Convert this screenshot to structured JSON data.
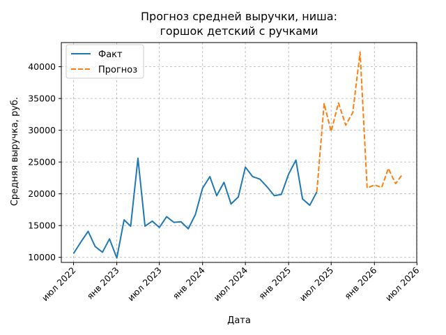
{
  "chart_data": {
    "type": "line",
    "title_lines": [
      "Прогноз средней выручки, ниша:",
      "горшок детский с ручками"
    ],
    "xlabel": "Дата",
    "ylabel": "Средняя выручка, руб.",
    "grid": true,
    "legend_position": "top-left",
    "xlim": [
      "2022-05-10",
      "2026-06-30"
    ],
    "ylim": [
      9200,
      43800
    ],
    "x_ticks": [
      {
        "date": "2022-07-01",
        "label": "июл 2022"
      },
      {
        "date": "2023-01-01",
        "label": "янв 2023"
      },
      {
        "date": "2023-07-01",
        "label": "июл 2023"
      },
      {
        "date": "2024-01-01",
        "label": "янв 2024"
      },
      {
        "date": "2024-07-01",
        "label": "июл 2024"
      },
      {
        "date": "2025-01-01",
        "label": "янв 2025"
      },
      {
        "date": "2025-07-01",
        "label": "июл 2025"
      },
      {
        "date": "2026-01-01",
        "label": "янв 2026"
      },
      {
        "date": "2026-07-01",
        "label": "июл 2026"
      }
    ],
    "y_ticks": [
      10000,
      15000,
      20000,
      25000,
      30000,
      35000,
      40000
    ],
    "series": [
      {
        "name": "Факт",
        "color": "#1f77b4",
        "style": "solid",
        "points": [
          [
            "2022-07-01",
            10600
          ],
          [
            "2022-08-01",
            12400
          ],
          [
            "2022-09-01",
            14100
          ],
          [
            "2022-10-01",
            11700
          ],
          [
            "2022-11-01",
            10800
          ],
          [
            "2022-12-01",
            12900
          ],
          [
            "2023-01-01",
            9900
          ],
          [
            "2023-02-01",
            15900
          ],
          [
            "2023-03-01",
            14900
          ],
          [
            "2023-04-01",
            25600
          ],
          [
            "2023-05-01",
            14900
          ],
          [
            "2023-06-01",
            15700
          ],
          [
            "2023-07-01",
            14700
          ],
          [
            "2023-08-01",
            16400
          ],
          [
            "2023-09-01",
            15500
          ],
          [
            "2023-10-01",
            15600
          ],
          [
            "2023-11-01",
            14500
          ],
          [
            "2023-12-01",
            16700
          ],
          [
            "2024-01-01",
            20900
          ],
          [
            "2024-02-01",
            22700
          ],
          [
            "2024-03-01",
            19700
          ],
          [
            "2024-04-01",
            21800
          ],
          [
            "2024-05-01",
            18400
          ],
          [
            "2024-06-01",
            19500
          ],
          [
            "2024-07-01",
            24200
          ],
          [
            "2024-08-01",
            22700
          ],
          [
            "2024-09-01",
            22300
          ],
          [
            "2024-10-01",
            21100
          ],
          [
            "2024-11-01",
            19700
          ],
          [
            "2024-12-01",
            19900
          ],
          [
            "2025-01-01",
            23100
          ],
          [
            "2025-02-01",
            25300
          ],
          [
            "2025-03-01",
            19200
          ],
          [
            "2025-04-01",
            18200
          ],
          [
            "2025-05-01",
            20300
          ]
        ]
      },
      {
        "name": "Прогноз",
        "color": "#ff7f0e",
        "style": "dashed",
        "points": [
          [
            "2025-05-01",
            20300
          ],
          [
            "2025-06-01",
            34200
          ],
          [
            "2025-07-01",
            29800
          ],
          [
            "2025-08-01",
            34300
          ],
          [
            "2025-09-01",
            30800
          ],
          [
            "2025-10-01",
            32800
          ],
          [
            "2025-11-01",
            42300
          ],
          [
            "2025-12-01",
            20900
          ],
          [
            "2026-01-01",
            21400
          ],
          [
            "2026-02-01",
            21000
          ],
          [
            "2026-03-01",
            24000
          ],
          [
            "2026-04-01",
            21600
          ],
          [
            "2026-05-01",
            23100
          ]
        ]
      }
    ]
  }
}
